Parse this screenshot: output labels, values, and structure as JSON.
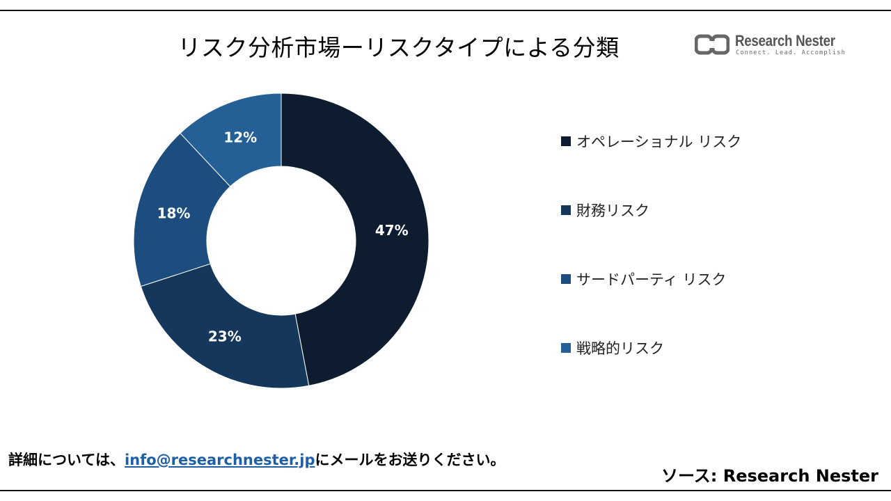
{
  "header": {
    "title": "リスク分析市場ーリスクタイプによる分類",
    "logo_name": "Research Nester",
    "logo_tagline": "Connect. Lead. Accomplish"
  },
  "chart_data": {
    "type": "pie",
    "donut": true,
    "title": "リスク分析市場ーリスクタイプによる分類",
    "categories": [
      "オペレーショナル リスク",
      "財務リスク",
      "サードパーティ リスク",
      "戦略的リスク"
    ],
    "values": [
      47,
      23,
      18,
      12
    ],
    "labels": [
      "47%",
      "23%",
      "18%",
      "12%"
    ],
    "colors": [
      "#0d1d2f",
      "#15375c",
      "#1c4d7e",
      "#245f96"
    ],
    "legend_position": "right"
  },
  "footer": {
    "note_prefix": "詳細については、",
    "email": "info@researchnester.jp",
    "note_suffix": "にメールをお送りください。",
    "source": "ソース: Research Nester"
  }
}
